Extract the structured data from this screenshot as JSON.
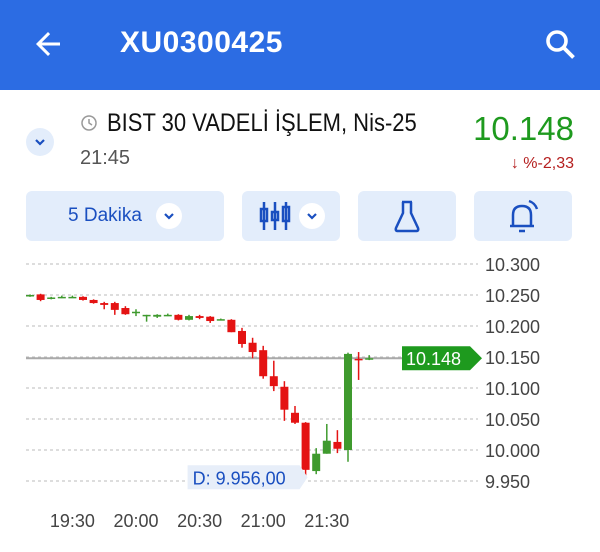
{
  "header": {
    "title": "XU0300425",
    "back_icon": "arrow-left-icon",
    "search_icon": "search-icon"
  },
  "instrument": {
    "name": "BIST 30 VADELİ İŞLEM, Nis-25",
    "time": "21:45",
    "price": "10.148",
    "change": "%-2,33",
    "change_arrow": "↓",
    "price_color": "#1e9a1e",
    "change_color": "#b52020"
  },
  "toolbar": {
    "interval_label": "5 Dakika",
    "chart_type_icon": "candlestick-icon",
    "indicators_icon": "flask-icon",
    "alert_icon": "bell-icon"
  },
  "colors": {
    "accent": "#2c6ce3",
    "up": "#3f9a2e",
    "down": "#e41313"
  },
  "chart_data": {
    "type": "candlestick",
    "ylim": [
      9.935,
      10.315
    ],
    "y_ticks": [
      "10.300",
      "10.250",
      "10.200",
      "10.150",
      "10.100",
      "10.050",
      "10.000",
      "9.950"
    ],
    "x_ticks": [
      "19:30",
      "20:00",
      "20:30",
      "21:00",
      "21:30"
    ],
    "last_price_label": "10.148",
    "low_label": "D: 9.956,00",
    "grid": true,
    "candles": [
      {
        "t": "19:10",
        "o": 10.248,
        "h": 10.251,
        "l": 10.247,
        "c": 10.25
      },
      {
        "t": "19:15",
        "o": 10.251,
        "h": 10.252,
        "l": 10.24,
        "c": 10.242
      },
      {
        "t": "19:20",
        "o": 10.245,
        "h": 10.247,
        "l": 10.243,
        "c": 10.246
      },
      {
        "t": "19:25",
        "o": 10.246,
        "h": 10.249,
        "l": 10.245,
        "c": 10.247
      },
      {
        "t": "19:30",
        "o": 10.247,
        "h": 10.249,
        "l": 10.246,
        "c": 10.247
      },
      {
        "t": "19:35",
        "o": 10.247,
        "h": 10.248,
        "l": 10.241,
        "c": 10.242
      },
      {
        "t": "19:40",
        "o": 10.242,
        "h": 10.243,
        "l": 10.236,
        "c": 10.237
      },
      {
        "t": "19:45",
        "o": 10.237,
        "h": 10.239,
        "l": 10.227,
        "c": 10.234
      },
      {
        "t": "19:50",
        "o": 10.237,
        "h": 10.239,
        "l": 10.218,
        "c": 10.226
      },
      {
        "t": "19:55",
        "o": 10.229,
        "h": 10.232,
        "l": 10.218,
        "c": 10.219
      },
      {
        "t": "20:00",
        "o": 10.221,
        "h": 10.227,
        "l": 10.216,
        "c": 10.223
      },
      {
        "t": "20:05",
        "o": 10.216,
        "h": 10.218,
        "l": 10.207,
        "c": 10.218
      },
      {
        "t": "20:10",
        "o": 10.215,
        "h": 10.219,
        "l": 10.213,
        "c": 10.218
      },
      {
        "t": "20:15",
        "o": 10.217,
        "h": 10.22,
        "l": 10.216,
        "c": 10.218
      },
      {
        "t": "20:20",
        "o": 10.218,
        "h": 10.219,
        "l": 10.209,
        "c": 10.21
      },
      {
        "t": "20:25",
        "o": 10.21,
        "h": 10.218,
        "l": 10.209,
        "c": 10.216
      },
      {
        "t": "20:30",
        "o": 10.216,
        "h": 10.218,
        "l": 10.211,
        "c": 10.213
      },
      {
        "t": "20:35",
        "o": 10.215,
        "h": 10.216,
        "l": 10.205,
        "c": 10.208
      },
      {
        "t": "20:40",
        "o": 10.21,
        "h": 10.212,
        "l": 10.209,
        "c": 10.211
      },
      {
        "t": "20:45",
        "o": 10.21,
        "h": 10.211,
        "l": 10.19,
        "c": 10.19
      },
      {
        "t": "20:50",
        "o": 10.192,
        "h": 10.197,
        "l": 10.165,
        "c": 10.171
      },
      {
        "t": "20:55",
        "o": 10.173,
        "h": 10.181,
        "l": 10.148,
        "c": 10.158
      },
      {
        "t": "21:00",
        "o": 10.161,
        "h": 10.168,
        "l": 10.115,
        "c": 10.119
      },
      {
        "t": "21:05",
        "o": 10.119,
        "h": 10.144,
        "l": 10.095,
        "c": 10.103
      },
      {
        "t": "21:10",
        "o": 10.102,
        "h": 10.111,
        "l": 10.047,
        "c": 10.065
      },
      {
        "t": "21:15",
        "o": 10.06,
        "h": 10.071,
        "l": 10.042,
        "c": 10.044
      },
      {
        "t": "21:20",
        "o": 10.044,
        "h": 10.045,
        "l": 9.956,
        "c": 9.968
      },
      {
        "t": "21:25",
        "o": 9.966,
        "h": 10.003,
        "l": 9.961,
        "c": 9.994
      },
      {
        "t": "21:30",
        "o": 9.994,
        "h": 10.042,
        "l": 9.994,
        "c": 10.015
      },
      {
        "t": "21:35",
        "o": 10.013,
        "h": 10.032,
        "l": 9.995,
        "c": 10.002
      },
      {
        "t": "21:40",
        "o": 10.0,
        "h": 10.157,
        "l": 9.981,
        "c": 10.155
      },
      {
        "t": "21:45",
        "o": 10.147,
        "h": 10.158,
        "l": 10.113,
        "c": 10.145
      },
      {
        "t": "21:50",
        "o": 10.147,
        "h": 10.153,
        "l": 10.145,
        "c": 10.148
      }
    ]
  }
}
